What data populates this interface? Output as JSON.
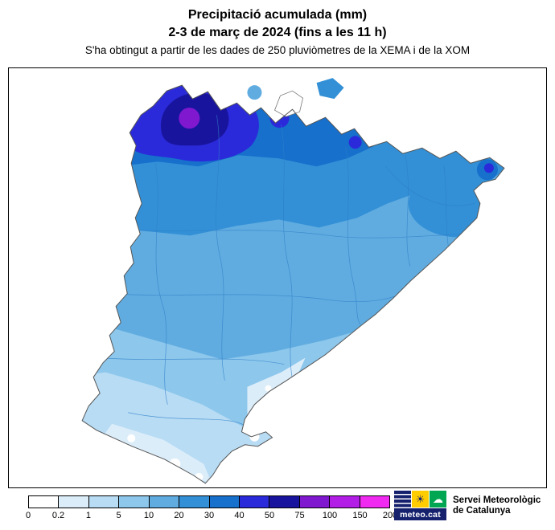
{
  "header": {
    "title_line1": "Precipitació acumulada (mm)",
    "title_line2": "2-3 de març de 2024 (fins a les 11 h)",
    "subtitle": "S'ha obtingut a partir de les dades de 250 pluviòmetres de la XEMA i de la XOM"
  },
  "legend": {
    "title": "Precipitació acumulada (mm)",
    "unit": "mm",
    "labels": [
      "0",
      "0.2",
      "1",
      "5",
      "10",
      "20",
      "30",
      "40",
      "50",
      "75",
      "100",
      "150",
      "200"
    ],
    "colors": [
      "#ffffff",
      "#dcedfa",
      "#b8dcf4",
      "#8dc7ec",
      "#60ace0",
      "#3390d6",
      "#1670cc",
      "#2a2ada",
      "#19149e",
      "#8018d0",
      "#b31ee6",
      "#f12af1"
    ]
  },
  "map": {
    "source_stations": "250 pluviòmetres de la XEMA i de la XOM",
    "pattern_note_max_area": "Pirineu occidental (nord-oest)",
    "pattern_note_min_area": "extrem sud"
  },
  "logo": {
    "brand": "meteo.cat",
    "org_line1": "Servei Meteorològic",
    "org_line2": "de Catalunya",
    "colors": {
      "navy": "#16216e",
      "yellow": "#ffcc00",
      "green": "#00a651"
    }
  }
}
